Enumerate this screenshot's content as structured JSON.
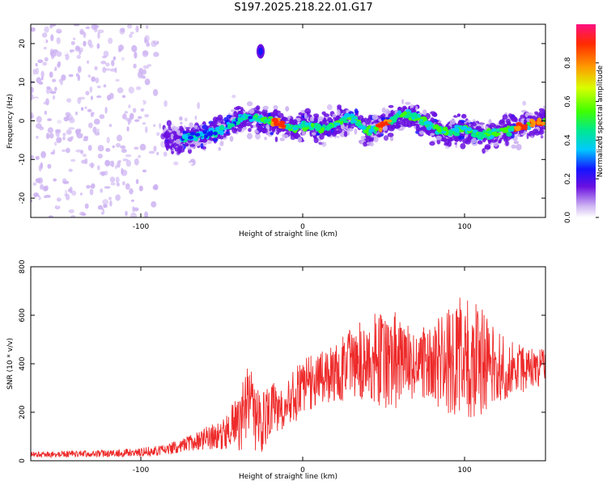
{
  "page": {
    "title": "S197.2025.218.22.01.G17"
  },
  "chart_data": [
    {
      "type": "heatmap",
      "title": "S197.2025.218.22.01.G17",
      "xlabel": "Height of straight line (km)",
      "ylabel": "Frequency (Hz)",
      "xlim": [
        -168,
        150
      ],
      "ylim": [
        -25,
        25
      ],
      "x_ticks": [
        -100,
        0,
        100
      ],
      "y_ticks": [
        -20,
        -10,
        0,
        10,
        20
      ],
      "colorbar": {
        "label": "Normalized spectral amplitude",
        "range": [
          0.0,
          1.0
        ],
        "ticks": [
          "0.0",
          "0.2",
          "0.4",
          "0.6",
          "0.8"
        ],
        "colors": [
          "#ffffff",
          "#cdb3f2",
          "#6a0fe0",
          "#1414ff",
          "#00c8ff",
          "#00e890",
          "#40ff00",
          "#d8ff00",
          "#ff9a00",
          "#ff2a00",
          "#ff1080"
        ]
      },
      "ridge_centerline": [
        {
          "x": -80,
          "y": -5
        },
        {
          "x": -65,
          "y": -4
        },
        {
          "x": -55,
          "y": -3
        },
        {
          "x": -45,
          "y": -1
        },
        {
          "x": -35,
          "y": 1
        },
        {
          "x": -20,
          "y": 0
        },
        {
          "x": -5,
          "y": -2
        },
        {
          "x": 0,
          "y": -1
        },
        {
          "x": 10,
          "y": -2
        },
        {
          "x": 20,
          "y": -1
        },
        {
          "x": 30,
          "y": 1
        },
        {
          "x": 40,
          "y": -3
        },
        {
          "x": 50,
          "y": -1
        },
        {
          "x": 55,
          "y": 0
        },
        {
          "x": 60,
          "y": 2
        },
        {
          "x": 70,
          "y": 1
        },
        {
          "x": 80,
          "y": -2
        },
        {
          "x": 90,
          "y": -3
        },
        {
          "x": 100,
          "y": -2
        },
        {
          "x": 110,
          "y": -4
        },
        {
          "x": 120,
          "y": -3
        },
        {
          "x": 130,
          "y": -2
        },
        {
          "x": 140,
          "y": -1
        },
        {
          "x": 150,
          "y": 0
        }
      ],
      "isolated_blob": {
        "x": -26,
        "y": 18
      },
      "hot_spots_x": [
        -15,
        50,
        135,
        145
      ]
    },
    {
      "type": "line",
      "xlabel": "Height of straight line (km)",
      "ylabel": "SNR (10 * v/v)",
      "xlim": [
        -168,
        150
      ],
      "ylim": [
        0,
        800
      ],
      "x_ticks": [
        -100,
        0,
        100
      ],
      "y_ticks": [
        0,
        200,
        400,
        600,
        800
      ],
      "color": "#ee2a2a",
      "series": [
        {
          "values_envelope": [
            {
              "x": -168,
              "mean": 25,
              "spread": 12
            },
            {
              "x": -140,
              "mean": 28,
              "spread": 14
            },
            {
              "x": -120,
              "mean": 30,
              "spread": 15
            },
            {
              "x": -100,
              "mean": 35,
              "spread": 18
            },
            {
              "x": -85,
              "mean": 45,
              "spread": 22
            },
            {
              "x": -70,
              "mean": 70,
              "spread": 35
            },
            {
              "x": -55,
              "mean": 100,
              "spread": 55
            },
            {
              "x": -45,
              "mean": 140,
              "spread": 90
            },
            {
              "x": -40,
              "mean": 170,
              "spread": 130
            },
            {
              "x": -33,
              "mean": 210,
              "spread": 190
            },
            {
              "x": -25,
              "mean": 150,
              "spread": 130
            },
            {
              "x": -18,
              "mean": 210,
              "spread": 110
            },
            {
              "x": -10,
              "mean": 240,
              "spread": 100
            },
            {
              "x": 0,
              "mean": 300,
              "spread": 120
            },
            {
              "x": 10,
              "mean": 330,
              "spread": 120
            },
            {
              "x": 20,
              "mean": 370,
              "spread": 130
            },
            {
              "x": 30,
              "mean": 400,
              "spread": 150
            },
            {
              "x": 40,
              "mean": 420,
              "spread": 170
            },
            {
              "x": 50,
              "mean": 430,
              "spread": 220
            },
            {
              "x": 60,
              "mean": 410,
              "spread": 190
            },
            {
              "x": 70,
              "mean": 390,
              "spread": 150
            },
            {
              "x": 80,
              "mean": 400,
              "spread": 170
            },
            {
              "x": 90,
              "mean": 420,
              "spread": 230
            },
            {
              "x": 100,
              "mean": 430,
              "spread": 260
            },
            {
              "x": 110,
              "mean": 420,
              "spread": 230
            },
            {
              "x": 120,
              "mean": 390,
              "spread": 150
            },
            {
              "x": 130,
              "mean": 380,
              "spread": 110
            },
            {
              "x": 140,
              "mean": 380,
              "spread": 90
            },
            {
              "x": 150,
              "mean": 390,
              "spread": 80
            }
          ]
        }
      ]
    }
  ]
}
